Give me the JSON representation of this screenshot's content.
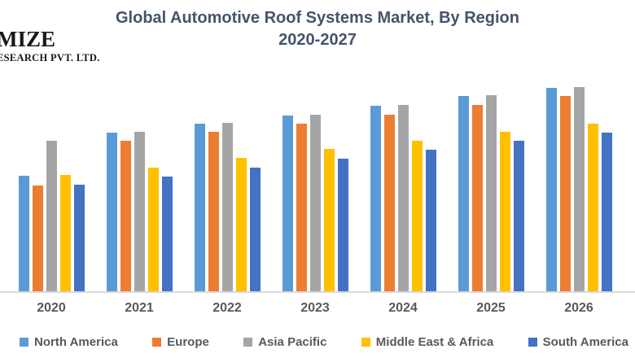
{
  "branding": {
    "line1": "MIZE",
    "line2": "ESEARCH PVT. LTD."
  },
  "title": {
    "line1": "Global Automotive Roof Systems Market, By Region",
    "line2": "2020-2027"
  },
  "chart_data": {
    "type": "bar",
    "title": "Global Automotive Roof Systems Market, By Region 2020-2027",
    "categories": [
      "2020",
      "2021",
      "2022",
      "2023",
      "2024",
      "2025",
      "2026"
    ],
    "series": [
      {
        "name": "North America",
        "color": "#5B9BD5",
        "values": [
          142,
          195,
          206,
          216,
          228,
          240,
          250
        ]
      },
      {
        "name": "Europe",
        "color": "#ED7D31",
        "values": [
          130,
          185,
          196,
          206,
          217,
          229,
          240
        ]
      },
      {
        "name": "Asia Pacific",
        "color": "#A5A5A5",
        "values": [
          185,
          196,
          207,
          217,
          229,
          241,
          251
        ]
      },
      {
        "name": "Middle East & Africa",
        "color": "#FFC000",
        "values": [
          143,
          152,
          164,
          175,
          185,
          196,
          206
        ]
      },
      {
        "name": "South America",
        "color": "#4472C4",
        "values": [
          131,
          141,
          152,
          163,
          174,
          185,
          195
        ]
      }
    ],
    "xlabel": "",
    "ylabel": "",
    "value_units": "relative (no y-axis shown)",
    "ylim": [
      0,
      270
    ],
    "y_axis_visible": false,
    "gridlines": false,
    "legend_position": "bottom"
  },
  "axis": {
    "line_color": "#D9D9D9",
    "label_color": "#595959"
  },
  "colors": {
    "title": "#44546A"
  }
}
